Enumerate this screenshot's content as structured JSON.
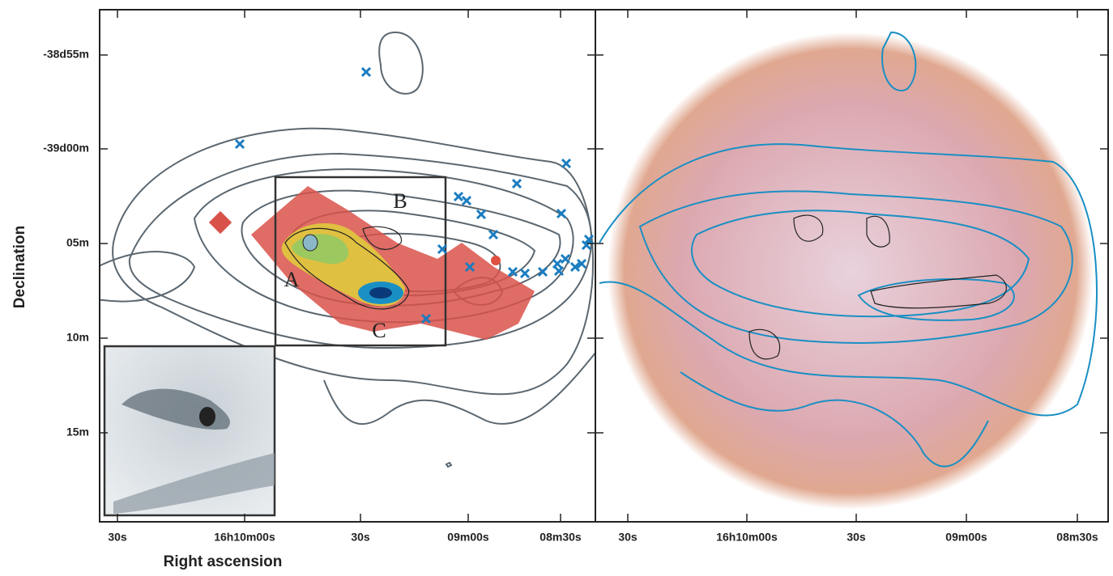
{
  "axes": {
    "y_label": "Declination",
    "x_label": "Right ascension",
    "yticks": [
      "-38d55m",
      "-39d00m",
      "05m",
      "10m",
      "15m"
    ],
    "xticks_left": [
      "30s",
      "16h10m00s",
      "30s",
      "09m00s",
      "08m30s"
    ],
    "xticks_right": [
      "30s",
      "16h10m00s",
      "30s",
      "09m00s",
      "08m30s"
    ]
  },
  "annotations": [
    "A",
    "B",
    "C"
  ]
}
